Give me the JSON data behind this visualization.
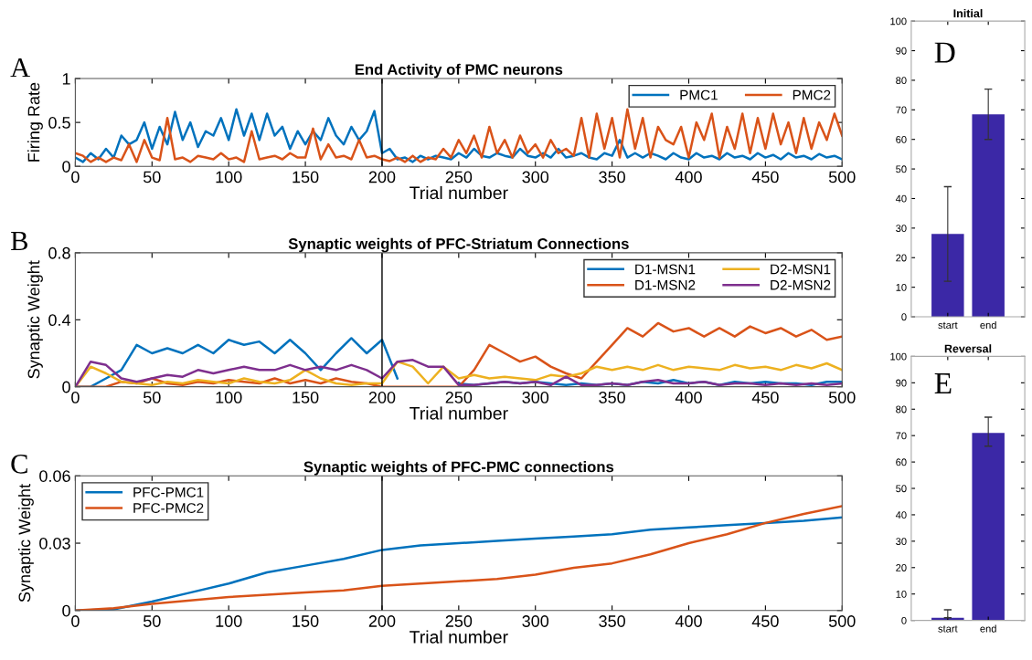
{
  "chart_data": [
    {
      "type": "line",
      "title": "End Activity of PMC neurons",
      "xlabel": "Trial number",
      "ylabel": "Firing Rate",
      "annotations": [
        "A"
      ],
      "legend": "top right",
      "grid": false,
      "xlim": [
        0,
        500
      ],
      "xticks": [
        0,
        50,
        100,
        150,
        200,
        250,
        300,
        350,
        400,
        450,
        500
      ],
      "ylim": [
        0,
        1
      ],
      "yticks": [
        0,
        0.5,
        1
      ],
      "ref_lines": [
        {
          "axis": "x",
          "value": 200,
          "color": "#000000"
        }
      ],
      "x": [
        0,
        5,
        10,
        15,
        20,
        25,
        30,
        35,
        40,
        45,
        50,
        55,
        60,
        65,
        70,
        75,
        80,
        85,
        90,
        95,
        100,
        105,
        110,
        115,
        120,
        125,
        130,
        135,
        140,
        145,
        150,
        155,
        160,
        165,
        170,
        175,
        180,
        185,
        190,
        195,
        200,
        205,
        210,
        215,
        220,
        225,
        230,
        235,
        240,
        245,
        250,
        255,
        260,
        265,
        270,
        275,
        280,
        285,
        290,
        295,
        300,
        305,
        310,
        315,
        320,
        325,
        330,
        335,
        340,
        345,
        350,
        355,
        360,
        365,
        370,
        375,
        380,
        385,
        390,
        395,
        400,
        405,
        410,
        415,
        420,
        425,
        430,
        435,
        440,
        445,
        450,
        455,
        460,
        465,
        470,
        475,
        480,
        485,
        490,
        495,
        500
      ],
      "series": [
        {
          "name": "PMC1",
          "color": "#0072bd",
          "values": [
            0.1,
            0.05,
            0.15,
            0.08,
            0.2,
            0.1,
            0.35,
            0.25,
            0.3,
            0.5,
            0.2,
            0.45,
            0.25,
            0.62,
            0.3,
            0.5,
            0.22,
            0.4,
            0.35,
            0.55,
            0.3,
            0.65,
            0.35,
            0.6,
            0.3,
            0.6,
            0.35,
            0.45,
            0.2,
            0.4,
            0.25,
            0.4,
            0.3,
            0.55,
            0.35,
            0.25,
            0.45,
            0.3,
            0.4,
            0.63,
            0.15,
            0.2,
            0.08,
            0.1,
            0.05,
            0.12,
            0.08,
            0.12,
            0.1,
            0.08,
            0.15,
            0.1,
            0.2,
            0.12,
            0.1,
            0.15,
            0.12,
            0.1,
            0.2,
            0.12,
            0.1,
            0.15,
            0.1,
            0.2,
            0.1,
            0.12,
            0.15,
            0.1,
            0.08,
            0.15,
            0.12,
            0.3,
            0.1,
            0.15,
            0.1,
            0.15,
            0.12,
            0.08,
            0.15,
            0.1,
            0.08,
            0.15,
            0.1,
            0.12,
            0.08,
            0.15,
            0.1,
            0.12,
            0.08,
            0.15,
            0.1,
            0.13,
            0.08,
            0.15,
            0.1,
            0.12,
            0.08,
            0.14,
            0.1,
            0.12,
            0.08
          ]
        },
        {
          "name": "PMC2",
          "color": "#d95319",
          "values": [
            0.15,
            0.12,
            0.05,
            0.1,
            0.05,
            0.1,
            0.07,
            0.25,
            0.05,
            0.3,
            0.1,
            0.07,
            0.55,
            0.08,
            0.1,
            0.05,
            0.12,
            0.1,
            0.08,
            0.15,
            0.08,
            0.1,
            0.05,
            0.4,
            0.08,
            0.1,
            0.12,
            0.08,
            0.15,
            0.1,
            0.1,
            0.43,
            0.08,
            0.25,
            0.1,
            0.12,
            0.08,
            0.3,
            0.1,
            0.12,
            0.08,
            0.06,
            0.1,
            0.05,
            0.12,
            0.05,
            0.1,
            0.08,
            0.2,
            0.1,
            0.3,
            0.15,
            0.35,
            0.1,
            0.45,
            0.15,
            0.3,
            0.1,
            0.35,
            0.15,
            0.25,
            0.1,
            0.3,
            0.15,
            0.2,
            0.12,
            0.55,
            0.1,
            0.6,
            0.2,
            0.55,
            0.1,
            0.65,
            0.2,
            0.55,
            0.1,
            0.45,
            0.3,
            0.25,
            0.45,
            0.1,
            0.5,
            0.3,
            0.6,
            0.1,
            0.45,
            0.2,
            0.6,
            0.15,
            0.55,
            0.2,
            0.6,
            0.25,
            0.5,
            0.15,
            0.55,
            0.2,
            0.5,
            0.3,
            0.6,
            0.35
          ]
        }
      ]
    },
    {
      "type": "line",
      "title": "Synaptic weights of PFC-Striatum Connections",
      "xlabel": "Trial number",
      "ylabel": "Synaptic Weight",
      "annotations": [
        "B"
      ],
      "legend": "top right",
      "grid": false,
      "xlim": [
        0,
        500
      ],
      "xticks": [
        0,
        50,
        100,
        150,
        200,
        250,
        300,
        350,
        400,
        450,
        500
      ],
      "ylim": [
        0,
        0.8
      ],
      "yticks": [
        0,
        0.4,
        0.8
      ],
      "ref_lines": [
        {
          "axis": "x",
          "value": 200,
          "color": "#000000"
        }
      ],
      "x": [
        0,
        10,
        20,
        30,
        40,
        50,
        60,
        70,
        80,
        90,
        100,
        110,
        120,
        130,
        140,
        150,
        160,
        170,
        180,
        190,
        200,
        210,
        220,
        230,
        240,
        250,
        260,
        270,
        280,
        290,
        300,
        310,
        320,
        330,
        340,
        350,
        360,
        370,
        380,
        390,
        400,
        410,
        420,
        430,
        440,
        450,
        460,
        470,
        480,
        490,
        500
      ],
      "series": [
        {
          "name": "D1-MSN1",
          "color": "#0072bd",
          "values": [
            0,
            0,
            0.05,
            0.1,
            0.25,
            0.2,
            0.23,
            0.2,
            0.25,
            0.2,
            0.28,
            0.25,
            0.27,
            0.2,
            0.28,
            0.2,
            0.1,
            0.2,
            0.29,
            0.2,
            0.28,
            0.05,
            null,
            null,
            null,
            0.02,
            0.01,
            0.02,
            0.03,
            0.02,
            0.03,
            0.02,
            0.01,
            0.02,
            0.01,
            0.02,
            0.01,
            0.03,
            0.02,
            0.04,
            0.02,
            0.03,
            0.01,
            0.03,
            0.02,
            0.03,
            0.02,
            0.02,
            0.01,
            0.03,
            0.03
          ]
        },
        {
          "name": "D1-MSN2",
          "color": "#d95319",
          "values": [
            0,
            0,
            0,
            0.03,
            0.02,
            0.05,
            0.02,
            0.01,
            0.03,
            0.02,
            0.04,
            0.03,
            0.02,
            0.05,
            0.02,
            0.04,
            0.02,
            0.05,
            0.03,
            0.02,
            0,
            0,
            0,
            0,
            0,
            0,
            0.1,
            0.25,
            0.2,
            0.15,
            0.18,
            0.12,
            0.08,
            0.05,
            0.15,
            0.25,
            0.35,
            0.3,
            0.38,
            0.33,
            0.35,
            0.3,
            0.35,
            0.3,
            0.36,
            0.32,
            0.35,
            0.3,
            0.34,
            0.28,
            0.3
          ]
        },
        {
          "name": "D2-MSN1",
          "color": "#edb120",
          "values": [
            0,
            0.12,
            0.08,
            0.03,
            0.02,
            0.01,
            0.03,
            0.02,
            0.04,
            0.03,
            0.02,
            0.05,
            0.03,
            0.02,
            0.04,
            0.1,
            0.05,
            0.02,
            0.01,
            0.02,
            0.02,
            0.15,
            0.12,
            0.02,
            0.12,
            0.05,
            0.07,
            0.05,
            0.06,
            0.05,
            0.04,
            0.07,
            0.06,
            0.08,
            0.12,
            0.1,
            0.12,
            0.1,
            0.13,
            0.1,
            0.12,
            0.11,
            0.1,
            0.13,
            0.11,
            0.12,
            0.1,
            0.13,
            0.11,
            0.14,
            0.1
          ]
        },
        {
          "name": "D2-MSN2",
          "color": "#7e2f8e",
          "values": [
            0,
            0.15,
            0.13,
            0.05,
            0.03,
            0.05,
            0.07,
            0.06,
            0.1,
            0.08,
            0.1,
            0.12,
            0.1,
            0.1,
            0.13,
            0.1,
            0.12,
            0.1,
            0.13,
            0.1,
            0.05,
            0.15,
            0.16,
            0.12,
            0.12,
            0.01,
            0.01,
            0.02,
            0.03,
            0.02,
            0.03,
            0.01,
            0.06,
            0.01,
            0.01,
            0.02,
            0.01,
            0.03,
            0.04,
            0.02,
            0.02,
            0.03,
            0.01,
            0.02,
            0.02,
            0.01,
            0.02,
            0.01,
            0.02,
            0.01,
            0.02
          ]
        }
      ]
    },
    {
      "type": "line",
      "title": "Synaptic weights of PFC-PMC connections",
      "xlabel": "Trial number",
      "ylabel": "Synaptic Weight",
      "annotations": [
        "C"
      ],
      "legend": "top left",
      "grid": false,
      "xlim": [
        0,
        500
      ],
      "xticks": [
        0,
        50,
        100,
        150,
        200,
        250,
        300,
        350,
        400,
        450,
        500
      ],
      "ylim": [
        0,
        0.06
      ],
      "yticks": [
        0,
        0.03,
        0.06
      ],
      "ref_lines": [
        {
          "axis": "x",
          "value": 200,
          "color": "#000000"
        }
      ],
      "x": [
        0,
        25,
        50,
        75,
        100,
        125,
        150,
        175,
        200,
        225,
        250,
        275,
        300,
        325,
        350,
        375,
        400,
        425,
        450,
        475,
        500
      ],
      "series": [
        {
          "name": "PFC-PMC1",
          "color": "#0072bd",
          "values": [
            0,
            0.0005,
            0.004,
            0.008,
            0.012,
            0.017,
            0.02,
            0.023,
            0.027,
            0.029,
            0.03,
            0.031,
            0.032,
            0.033,
            0.034,
            0.036,
            0.037,
            0.038,
            0.039,
            0.04,
            0.0415
          ]
        },
        {
          "name": "PFC-PMC2",
          "color": "#d95319",
          "values": [
            0,
            0.001,
            0.003,
            0.0045,
            0.006,
            0.007,
            0.008,
            0.009,
            0.011,
            0.012,
            0.013,
            0.014,
            0.016,
            0.019,
            0.021,
            0.025,
            0.03,
            0.034,
            0.039,
            0.043,
            0.0465
          ]
        }
      ]
    },
    {
      "type": "bar",
      "title": "Initial",
      "annotations": [
        "D"
      ],
      "grid": false,
      "categories": [
        "start",
        "end"
      ],
      "values": [
        28,
        68.5
      ],
      "errors": [
        [
          12,
          44
        ],
        [
          60,
          77
        ]
      ],
      "color": "#3b28a6",
      "ylim": [
        0,
        100
      ],
      "yticks": [
        0,
        10,
        20,
        30,
        40,
        50,
        60,
        70,
        80,
        90,
        100
      ]
    },
    {
      "type": "bar",
      "title": "Reversal",
      "annotations": [
        "E"
      ],
      "grid": false,
      "categories": [
        "start",
        "end"
      ],
      "values": [
        1,
        71
      ],
      "errors": [
        [
          1,
          4
        ],
        [
          66,
          77
        ]
      ],
      "color": "#3b28a6",
      "ylim": [
        0,
        100
      ],
      "yticks": [
        0,
        10,
        20,
        30,
        40,
        50,
        60,
        70,
        80,
        90,
        100
      ]
    }
  ]
}
